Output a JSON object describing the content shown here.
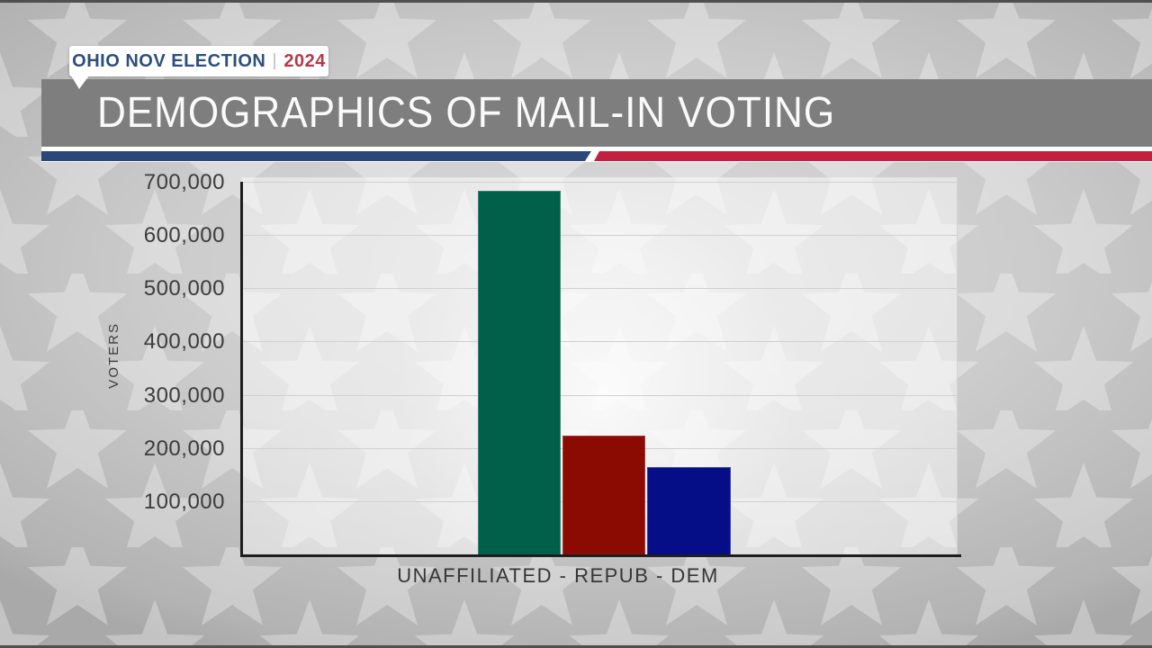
{
  "frame": {
    "top_strip_color": "#4f4f4f",
    "bottom_strip_color": "#4f4f4f"
  },
  "badge": {
    "label": "OHIO NOV ELECTION",
    "separator": "|",
    "year": "2024",
    "label_color": "#2d4f7c",
    "year_color": "#b5394a"
  },
  "header": {
    "title": "DEMOGRAPHICS OF MAIL-IN VOTING",
    "band_color": "#7e7e7e",
    "stripe_blue_color": "#2a4779",
    "stripe_red_color": "#c41f3f"
  },
  "chart_data": {
    "type": "bar",
    "title": "DEMOGRAPHICS OF MAIL-IN VOTING",
    "categories": [
      "UNAFFILIATED",
      "REPUB",
      "DEM"
    ],
    "values": [
      685000,
      225000,
      165000
    ],
    "bar_colors": [
      "#00604a",
      "#8b0b02",
      "#050e87"
    ],
    "xlabel": "UNAFFILIATED - REPUB - DEM",
    "ylabel": "VOTERS",
    "ylim": [
      0,
      700000
    ],
    "ytick_step": 100000,
    "yticks": [
      {
        "value": 100000,
        "label": "100,000"
      },
      {
        "value": 200000,
        "label": "200,000"
      },
      {
        "value": 300000,
        "label": "300,000"
      },
      {
        "value": 400000,
        "label": "400,000"
      },
      {
        "value": 500000,
        "label": "500,000"
      },
      {
        "value": 600000,
        "label": "600,000"
      },
      {
        "value": 700000,
        "label": "700,000"
      }
    ],
    "grid": true,
    "legend": "none"
  }
}
